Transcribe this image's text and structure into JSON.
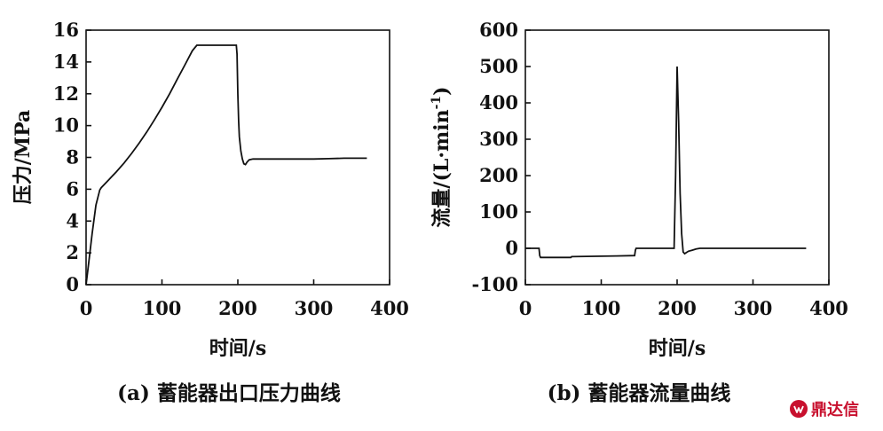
{
  "chart_data": [
    {
      "type": "line",
      "caption": "(a) 蓄能器出口压力曲线",
      "xlabel": "时间/s",
      "ylabel": "压力/MPa",
      "xlim": [
        0,
        400
      ],
      "ylim": [
        0,
        16
      ],
      "xticks": [
        0,
        100,
        200,
        300,
        400
      ],
      "yticks": [
        0,
        2,
        4,
        6,
        8,
        10,
        12,
        14,
        16
      ],
      "grid": false,
      "series": [
        {
          "x": [
            0,
            3,
            8,
            13,
            18,
            20,
            30,
            40,
            50,
            60,
            70,
            80,
            90,
            100,
            110,
            120,
            130,
            140,
            146,
            150,
            160,
            170,
            180,
            190,
            198,
            199,
            200,
            201,
            202,
            204,
            206,
            208,
            210,
            212,
            215,
            220,
            230,
            250,
            300,
            320,
            340,
            360,
            370
          ],
          "y": [
            0,
            1.2,
            3.2,
            5.0,
            5.95,
            6.1,
            6.6,
            7.1,
            7.65,
            8.25,
            8.9,
            9.6,
            10.35,
            11.15,
            12.0,
            12.9,
            13.8,
            14.7,
            15.05,
            15.05,
            15.05,
            15.05,
            15.05,
            15.05,
            15.05,
            14.5,
            12.0,
            10.3,
            9.3,
            8.4,
            7.9,
            7.6,
            7.55,
            7.7,
            7.85,
            7.9,
            7.9,
            7.9,
            7.9,
            7.92,
            7.95,
            7.95,
            7.95
          ]
        }
      ]
    },
    {
      "type": "line",
      "caption": "(b) 蓄能器流量曲线",
      "xlabel": "时间/s",
      "ylabel": "流量/(L·min",
      "ylabel_sup": "-1",
      "ylabel_end": ")",
      "xlim": [
        0,
        400
      ],
      "ylim": [
        -100,
        600
      ],
      "xticks": [
        0,
        100,
        200,
        300,
        400
      ],
      "yticks": [
        -100,
        0,
        100,
        200,
        300,
        400,
        500,
        600
      ],
      "grid": false,
      "series": [
        {
          "x": [
            0,
            18,
            19,
            20,
            60,
            61,
            120,
            144,
            145,
            146,
            190,
            196,
            198,
            200,
            202,
            204,
            206,
            208,
            210,
            212,
            215,
            220,
            225,
            230,
            300,
            370
          ],
          "y": [
            0,
            0,
            -20,
            -25,
            -25,
            -23,
            -21,
            -20,
            -5,
            0,
            0,
            0,
            200,
            500,
            350,
            150,
            40,
            -10,
            -15,
            -12,
            -8,
            -5,
            -2,
            0,
            0,
            0
          ]
        }
      ]
    }
  ],
  "watermark": {
    "text": "鼎达信",
    "icon": "logo-mark-icon",
    "color": "#c8102e"
  }
}
